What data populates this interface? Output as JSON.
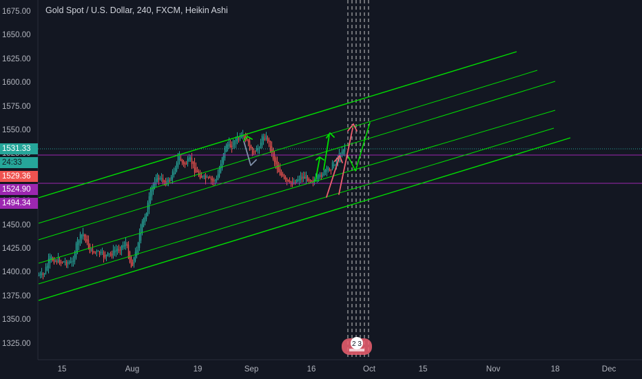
{
  "title": {
    "symbol": "Gold Spot / U.S. Dollar",
    "interval": "240",
    "exchange": "FXCM",
    "chart_style": "Heikin Ashi"
  },
  "price_axis": {
    "ticks": [
      "1675.00",
      "1650.00",
      "1625.00",
      "1600.00",
      "1575.00",
      "1550.00",
      "1525.00",
      "1500.00",
      "1475.00",
      "1450.00",
      "1425.00",
      "1400.00",
      "1375.00",
      "1350.00",
      "1325.00"
    ]
  },
  "time_axis": {
    "ticks": [
      "15",
      "Aug",
      "19",
      "Sep",
      "16",
      "Oct",
      "15",
      "Nov",
      "18",
      "Dec"
    ]
  },
  "price_badges": {
    "last_price": "1531.33",
    "countdown": "24:33",
    "prev_close": "1529.36",
    "line_upper": "1524.90",
    "line_lower": "1494.34"
  },
  "events": {
    "count_label": "2 3"
  },
  "colors": {
    "background": "#131722",
    "up_candle": "#26a69a",
    "down_candle": "#ef5350",
    "channel": "#00e000",
    "horizontal_line": "#9c27b0",
    "last_price": "#26a69a",
    "arrow_green": "#00e000",
    "arrow_red": "#f06070",
    "arrow_gray": "#8090a8"
  }
}
